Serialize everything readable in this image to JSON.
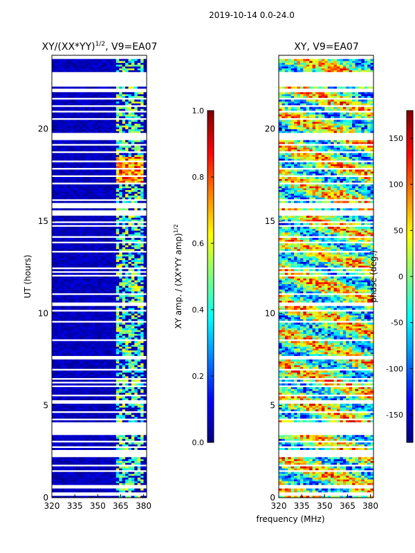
{
  "suptitle": "2019-10-14 0.0-24.0",
  "shared_xlabel": "frequency (MHz)",
  "chart_data": [
    {
      "type": "heatmap",
      "title_main": "XY/(XX*YY)",
      "title_sup": "1/2",
      "title_suffix": ", V9=EA07",
      "ylabel": "UT (hours)",
      "xlim": [
        320,
        382
      ],
      "ylim": [
        0,
        24
      ],
      "xticks": [
        320,
        335,
        350,
        365,
        380
      ],
      "yticks": [
        0,
        5,
        10,
        15,
        20
      ],
      "colorbar": {
        "label_main": "XY amp. / (XX*YY amp)",
        "label_sup": "1/2",
        "range": [
          0.0,
          1.0
        ],
        "ticks": [
          0.0,
          0.2,
          0.4,
          0.6,
          0.8,
          1.0
        ],
        "tick_labels": [
          "0.0",
          "0.2",
          "0.4",
          "0.6",
          "0.8",
          "1.0"
        ]
      }
    },
    {
      "type": "heatmap",
      "title_main": "XY, V9=EA07",
      "ylabel": "",
      "xlim": [
        320,
        382
      ],
      "ylim": [
        0,
        24
      ],
      "xticks": [
        320,
        335,
        350,
        365,
        380
      ],
      "yticks": [
        0,
        5,
        10,
        15,
        20
      ],
      "colorbar": {
        "label_main": "phase (deg.)",
        "range": [
          -180,
          180
        ],
        "ticks": [
          -150,
          -100,
          -50,
          0,
          50,
          100,
          150
        ],
        "tick_labels": [
          "-150",
          "-100",
          "-50",
          "0",
          "50",
          "100",
          "150"
        ]
      }
    }
  ],
  "colors": {
    "jet": [
      "#00007f",
      "#0000ff",
      "#007fff",
      "#00ffff",
      "#7fff7f",
      "#ffff00",
      "#ff7f00",
      "#ff0000",
      "#7f0000"
    ]
  }
}
